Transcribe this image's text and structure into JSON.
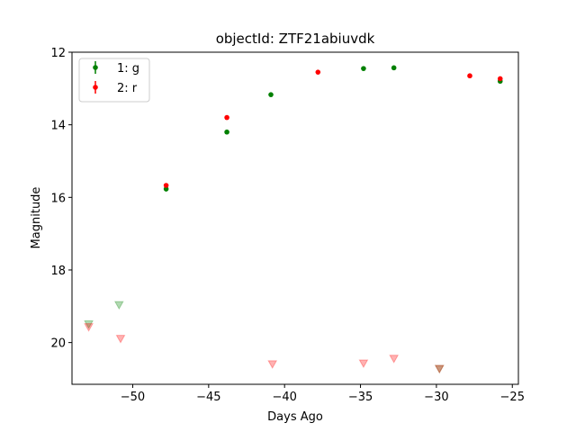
{
  "chart_data": {
    "type": "scatter",
    "title": "objectId: ZTF21abiuvdk",
    "xlabel": "Days Ago",
    "ylabel": "Magnitude",
    "xlim": [
      -54,
      -24.6
    ],
    "ylim": [
      21.15,
      12
    ],
    "y_inverted": true,
    "x_ticks": [
      -50,
      -45,
      -40,
      -35,
      -30,
      -25
    ],
    "x_tick_labels": [
      "−50",
      "−45",
      "−40",
      "−35",
      "−30",
      "−25"
    ],
    "y_ticks": [
      12,
      14,
      16,
      18,
      20
    ],
    "y_tick_labels": [
      "12",
      "14",
      "16",
      "18",
      "20"
    ],
    "grid": false,
    "legend_position": "top-left",
    "series": [
      {
        "name": "1: g",
        "color": "#008000",
        "detections": [
          {
            "x": -47.8,
            "y": 15.77
          },
          {
            "x": -43.8,
            "y": 14.2
          },
          {
            "x": -40.9,
            "y": 13.17
          },
          {
            "x": -34.8,
            "y": 12.45
          },
          {
            "x": -32.8,
            "y": 12.43
          },
          {
            "x": -25.8,
            "y": 12.8
          }
        ],
        "upper_limits": [
          {
            "x": -52.9,
            "y": 19.5
          },
          {
            "x": -50.9,
            "y": 18.97
          },
          {
            "x": -29.8,
            "y": 20.73
          }
        ]
      },
      {
        "name": "2: r",
        "color": "#ff0000",
        "detections": [
          {
            "x": -47.8,
            "y": 15.67
          },
          {
            "x": -43.8,
            "y": 13.8
          },
          {
            "x": -37.8,
            "y": 12.55
          },
          {
            "x": -27.8,
            "y": 12.65
          },
          {
            "x": -25.8,
            "y": 12.73
          }
        ],
        "upper_limits": [
          {
            "x": -52.9,
            "y": 19.58
          },
          {
            "x": -50.8,
            "y": 19.9
          },
          {
            "x": -40.8,
            "y": 20.6
          },
          {
            "x": -34.8,
            "y": 20.58
          },
          {
            "x": -32.8,
            "y": 20.45
          },
          {
            "x": -29.8,
            "y": 20.73
          }
        ]
      }
    ]
  }
}
